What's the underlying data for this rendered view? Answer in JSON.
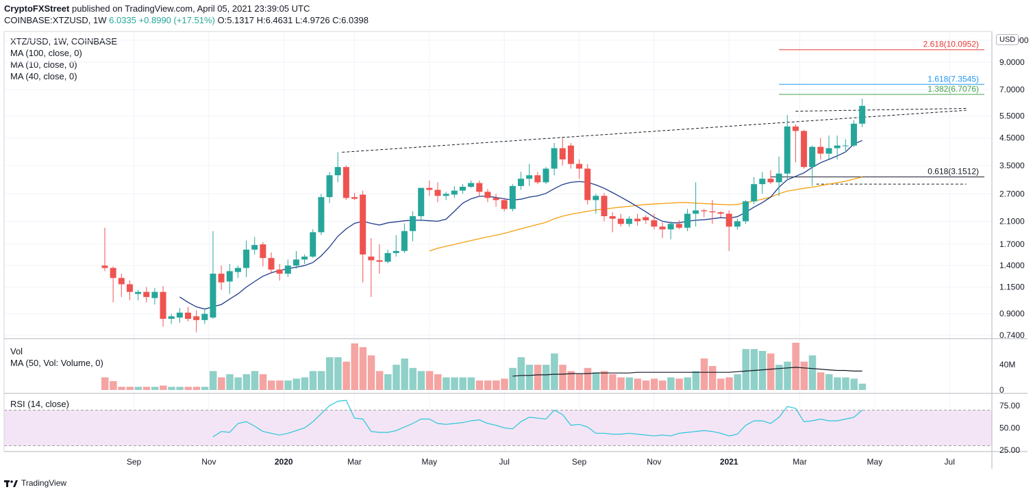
{
  "header": {
    "publisher": "CryptoFXStreet",
    "published_text": "published on TradingView.com, April 05, 2021 23:39:05 UTC",
    "symbol": "COINBASE:XTZUSD, 1W",
    "change": "+0.8990 (+17.51%)",
    "ohlc": "O:5.1317  H:6.4631  L:4.9726  C:6.0398",
    "last": "6.0335"
  },
  "legend": {
    "title": "XTZ/USD, 1W, COINBASE",
    "ma100": "MA (100, close, 0)",
    "ma10": "MA (10, close, 0)",
    "ma40": "MA (40, close, 0)",
    "vol": "Vol",
    "vol_ma": "MA (50, Vol: Volume, 0)",
    "rsi": "RSI (14, close)"
  },
  "currency": "USD",
  "footer": {
    "brand": "TradingView"
  },
  "colors": {
    "up": "#26a69a",
    "down": "#ef5350",
    "ma10": "#1e3a8a",
    "ma40": "#f59e0b",
    "rsi": "#26c6da",
    "fib_red": "#e53935",
    "fib_blue": "#2196f3",
    "fib_green": "#43a047"
  },
  "chart_data": {
    "type": "candlestick",
    "price_axis_ticks": [
      {
        "v": 11.0,
        "label": "11.0000"
      },
      {
        "v": 9.0,
        "label": "9.0000"
      },
      {
        "v": 7.0,
        "label": "7.0000"
      },
      {
        "v": 5.5,
        "label": "5.5000"
      },
      {
        "v": 4.5,
        "label": "4.5000"
      },
      {
        "v": 3.5,
        "label": "3.5000"
      },
      {
        "v": 2.7,
        "label": "2.7000"
      },
      {
        "v": 2.1,
        "label": "2.1000"
      },
      {
        "v": 1.7,
        "label": "1.7000"
      },
      {
        "v": 1.4,
        "label": "1.4000"
      },
      {
        "v": 1.15,
        "label": "1.1500"
      },
      {
        "v": 0.9,
        "label": "0.9000"
      },
      {
        "v": 0.74,
        "label": "0.7400"
      }
    ],
    "scale": "log",
    "time_labels": [
      {
        "i": 3.5,
        "label": "Sep",
        "bold": false
      },
      {
        "i": 12.5,
        "label": "Nov",
        "bold": false
      },
      {
        "i": 21.5,
        "label": "2020",
        "bold": true
      },
      {
        "i": 30,
        "label": "Mar",
        "bold": false
      },
      {
        "i": 39,
        "label": "May",
        "bold": false
      },
      {
        "i": 48,
        "label": "Jul",
        "bold": false
      },
      {
        "i": 57,
        "label": "Sep",
        "bold": false
      },
      {
        "i": 66,
        "label": "Nov",
        "bold": false
      },
      {
        "i": 75,
        "label": "2021",
        "bold": true
      },
      {
        "i": 83.5,
        "label": "Mar",
        "bold": false
      },
      {
        "i": 92.5,
        "label": "May",
        "bold": false
      },
      {
        "i": 101.5,
        "label": "Jul",
        "bold": false
      }
    ],
    "candles": [
      [
        1.4,
        1.98,
        1.33,
        1.37
      ],
      [
        1.37,
        1.39,
        1.0,
        1.25
      ],
      [
        1.25,
        1.3,
        1.05,
        1.18
      ],
      [
        1.18,
        1.22,
        1.02,
        1.1
      ],
      [
        1.08,
        1.12,
        1.02,
        1.1
      ],
      [
        1.1,
        1.15,
        1.0,
        1.05
      ],
      [
        1.04,
        1.14,
        0.98,
        1.1
      ],
      [
        1.1,
        1.16,
        0.8,
        0.86
      ],
      [
        0.86,
        0.9,
        0.82,
        0.88
      ],
      [
        0.87,
        0.95,
        0.83,
        0.91
      ],
      [
        0.91,
        0.96,
        0.84,
        0.86
      ],
      [
        0.88,
        0.93,
        0.76,
        0.85
      ],
      [
        0.85,
        0.95,
        0.82,
        0.9
      ],
      [
        0.87,
        1.92,
        0.86,
        1.3
      ],
      [
        1.3,
        1.4,
        1.12,
        1.2
      ],
      [
        1.21,
        1.42,
        1.08,
        1.33
      ],
      [
        1.32,
        1.4,
        1.25,
        1.37
      ],
      [
        1.37,
        1.76,
        1.26,
        1.62
      ],
      [
        1.62,
        1.82,
        1.55,
        1.69
      ],
      [
        1.7,
        1.74,
        1.39,
        1.5
      ],
      [
        1.5,
        1.58,
        1.3,
        1.35
      ],
      [
        1.35,
        1.42,
        1.22,
        1.3
      ],
      [
        1.3,
        1.48,
        1.26,
        1.4
      ],
      [
        1.4,
        1.6,
        1.36,
        1.48
      ],
      [
        1.48,
        1.55,
        1.42,
        1.52
      ],
      [
        1.52,
        1.95,
        1.5,
        1.9
      ],
      [
        1.9,
        2.7,
        1.85,
        2.62
      ],
      [
        2.62,
        3.3,
        2.48,
        3.2
      ],
      [
        3.2,
        3.95,
        3.0,
        3.45
      ],
      [
        3.45,
        3.5,
        2.55,
        2.6
      ],
      [
        2.62,
        2.72,
        2.55,
        2.58
      ],
      [
        2.68,
        2.78,
        1.2,
        1.55
      ],
      [
        1.52,
        1.8,
        1.05,
        1.47
      ],
      [
        1.47,
        1.7,
        1.3,
        1.45
      ],
      [
        1.45,
        1.62,
        1.43,
        1.57
      ],
      [
        1.57,
        1.85,
        1.52,
        1.6
      ],
      [
        1.6,
        2.06,
        1.57,
        1.92
      ],
      [
        1.92,
        2.3,
        1.75,
        2.2
      ],
      [
        2.2,
        2.85,
        2.1,
        2.85
      ],
      [
        2.85,
        3.05,
        2.65,
        2.8
      ],
      [
        2.8,
        3.0,
        2.5,
        2.65
      ],
      [
        2.65,
        2.75,
        2.55,
        2.7
      ],
      [
        2.68,
        2.9,
        2.6,
        2.78
      ],
      [
        2.78,
        2.95,
        2.7,
        2.88
      ],
      [
        2.88,
        3.05,
        2.85,
        2.98
      ],
      [
        2.98,
        3.05,
        2.65,
        2.75
      ],
      [
        2.75,
        2.82,
        2.5,
        2.6
      ],
      [
        2.6,
        2.7,
        2.4,
        2.55
      ],
      [
        2.55,
        2.6,
        2.3,
        2.35
      ],
      [
        2.35,
        2.95,
        2.3,
        2.9
      ],
      [
        2.9,
        3.3,
        2.8,
        3.1
      ],
      [
        3.1,
        3.55,
        2.9,
        3.2
      ],
      [
        3.2,
        3.3,
        2.95,
        3.0
      ],
      [
        3.0,
        3.45,
        2.95,
        3.4
      ],
      [
        3.4,
        4.3,
        3.2,
        4.1
      ],
      [
        4.1,
        4.5,
        3.5,
        3.7
      ],
      [
        4.2,
        4.3,
        3.4,
        3.55
      ],
      [
        3.55,
        3.7,
        3.1,
        3.4
      ],
      [
        3.4,
        3.55,
        2.45,
        2.55
      ],
      [
        2.55,
        2.7,
        2.25,
        2.65
      ],
      [
        2.65,
        2.72,
        2.1,
        2.2
      ],
      [
        2.2,
        2.28,
        1.9,
        2.15
      ],
      [
        2.15,
        2.25,
        2.0,
        2.05
      ],
      [
        2.05,
        2.2,
        2.0,
        2.15
      ],
      [
        2.15,
        2.25,
        2.02,
        2.1
      ],
      [
        2.18,
        2.22,
        2.05,
        2.12
      ],
      [
        2.12,
        2.25,
        1.95,
        2.0
      ],
      [
        2.0,
        2.08,
        1.8,
        1.95
      ],
      [
        1.95,
        2.1,
        1.78,
        2.05
      ],
      [
        2.05,
        2.12,
        1.95,
        1.98
      ],
      [
        1.98,
        2.35,
        1.92,
        2.25
      ],
      [
        2.25,
        3.0,
        2.0,
        2.32
      ],
      [
        2.32,
        2.35,
        2.18,
        2.3
      ],
      [
        2.3,
        2.55,
        2.05,
        2.28
      ],
      [
        2.28,
        2.3,
        2.18,
        2.25
      ],
      [
        2.25,
        2.32,
        1.6,
        2.0
      ],
      [
        2.0,
        2.15,
        1.95,
        2.1
      ],
      [
        2.1,
        2.55,
        2.05,
        2.52
      ],
      [
        2.52,
        3.15,
        2.45,
        2.95
      ],
      [
        2.95,
        3.3,
        2.7,
        3.1
      ],
      [
        3.1,
        3.35,
        2.95,
        3.0
      ],
      [
        3.0,
        3.8,
        2.65,
        3.25
      ],
      [
        3.25,
        5.55,
        3.05,
        5.0
      ],
      [
        5.0,
        5.1,
        3.6,
        4.8
      ],
      [
        4.8,
        4.85,
        3.4,
        3.45
      ],
      [
        3.45,
        4.2,
        2.9,
        4.15
      ],
      [
        4.15,
        4.5,
        3.7,
        3.9
      ],
      [
        3.9,
        4.6,
        3.7,
        4.1
      ],
      [
        4.1,
        4.6,
        3.7,
        4.2
      ],
      [
        4.2,
        4.45,
        3.95,
        4.2
      ],
      [
        4.2,
        5.3,
        4.15,
        5.13
      ],
      [
        5.13,
        6.46,
        4.97,
        6.04
      ]
    ],
    "volumes": [
      20,
      14,
      5,
      5,
      5,
      5,
      5,
      7,
      5,
      5,
      5,
      5,
      5,
      30,
      20,
      25,
      20,
      25,
      30,
      25,
      15,
      15,
      15,
      18,
      20,
      30,
      30,
      52,
      52,
      45,
      74,
      68,
      55,
      30,
      25,
      40,
      50,
      35,
      30,
      30,
      25,
      20,
      20,
      20,
      20,
      15,
      15,
      15,
      18,
      35,
      52,
      40,
      40,
      40,
      58,
      40,
      30,
      25,
      35,
      28,
      30,
      25,
      20,
      20,
      18,
      15,
      18,
      15,
      20,
      18,
      20,
      30,
      50,
      38,
      18,
      20,
      25,
      65,
      65,
      62,
      58,
      40,
      45,
      75,
      45,
      55,
      28,
      25,
      20,
      20,
      18,
      10
    ],
    "ma10": [
      null,
      null,
      null,
      null,
      null,
      null,
      null,
      null,
      null,
      1.05,
      1.0,
      0.96,
      0.94,
      0.96,
      0.98,
      1.03,
      1.08,
      1.15,
      1.21,
      1.27,
      1.31,
      1.34,
      1.36,
      1.38,
      1.4,
      1.44,
      1.53,
      1.66,
      1.83,
      1.96,
      2.06,
      2.1,
      2.06,
      2.03,
      2.07,
      2.09,
      2.11,
      2.12,
      2.12,
      2.11,
      2.1,
      2.14,
      2.3,
      2.48,
      2.58,
      2.64,
      2.64,
      2.61,
      2.58,
      2.55,
      2.57,
      2.62,
      2.65,
      2.71,
      2.83,
      2.94,
      3.0,
      3.02,
      3.0,
      2.93,
      2.84,
      2.73,
      2.62,
      2.51,
      2.4,
      2.29,
      2.18,
      2.1,
      2.07,
      2.07,
      2.1,
      2.12,
      2.13,
      2.15,
      2.17,
      2.16,
      2.19,
      2.28,
      2.39,
      2.49,
      2.62,
      2.87,
      3.07,
      3.17,
      3.27,
      3.44,
      3.59,
      3.7,
      3.82,
      3.96,
      4.26,
      4.4
    ],
    "ma40": [
      null,
      null,
      null,
      null,
      null,
      null,
      null,
      null,
      null,
      null,
      null,
      null,
      null,
      null,
      null,
      null,
      null,
      null,
      null,
      null,
      null,
      null,
      null,
      null,
      null,
      null,
      null,
      null,
      null,
      null,
      null,
      null,
      null,
      null,
      null,
      null,
      null,
      null,
      null,
      1.6,
      1.64,
      1.67,
      1.7,
      1.73,
      1.76,
      1.79,
      1.82,
      1.85,
      1.88,
      1.92,
      1.96,
      2.0,
      2.04,
      2.08,
      2.15,
      2.2,
      2.24,
      2.27,
      2.3,
      2.33,
      2.35,
      2.37,
      2.39,
      2.41,
      2.43,
      2.45,
      2.46,
      2.47,
      2.48,
      2.49,
      2.49,
      2.48,
      2.47,
      2.46,
      2.45,
      2.44,
      2.45,
      2.49,
      2.53,
      2.57,
      2.62,
      2.7,
      2.77,
      2.8,
      2.84,
      2.87,
      2.91,
      2.95,
      2.99,
      3.03,
      3.09,
      3.15
    ],
    "vol_ma": [
      null,
      null,
      null,
      null,
      null,
      null,
      null,
      null,
      null,
      null,
      null,
      null,
      null,
      null,
      null,
      null,
      null,
      null,
      null,
      null,
      null,
      null,
      null,
      null,
      null,
      null,
      null,
      null,
      null,
      null,
      null,
      null,
      null,
      null,
      null,
      null,
      null,
      null,
      null,
      null,
      null,
      null,
      null,
      null,
      null,
      null,
      null,
      null,
      null,
      22,
      23,
      23,
      24,
      24,
      25,
      25,
      26,
      26,
      26,
      27,
      27,
      27,
      27,
      27,
      28,
      28,
      28,
      28,
      28,
      28,
      28,
      28,
      28,
      28,
      28,
      28,
      29,
      30,
      31,
      32,
      33,
      34,
      35,
      36,
      35,
      34,
      33,
      32,
      31,
      31,
      30,
      30
    ],
    "rsi": [
      null,
      null,
      null,
      null,
      null,
      null,
      null,
      null,
      null,
      null,
      null,
      null,
      null,
      40,
      46,
      45,
      55,
      57,
      52,
      46,
      44,
      42,
      44,
      47,
      50,
      57,
      66,
      75,
      80,
      81,
      61,
      60,
      46,
      45,
      45,
      47,
      51,
      55,
      60,
      60,
      55,
      54,
      55,
      56,
      58,
      59,
      55,
      53,
      50,
      49,
      57,
      62,
      61,
      60,
      70,
      65,
      53,
      54,
      51,
      44,
      44,
      43,
      43,
      44,
      43,
      42,
      41,
      42,
      41,
      44,
      45,
      46,
      47,
      46,
      44,
      41,
      43,
      53,
      58,
      58,
      55,
      62,
      74,
      72,
      57,
      58,
      60,
      58,
      58,
      60,
      62,
      70
    ],
    "vol_ticks": [
      {
        "v": 40,
        "label": "40M"
      },
      {
        "v": 0,
        "label": "0"
      }
    ],
    "rsi_ticks": [
      {
        "v": 75,
        "label": "75.00"
      },
      {
        "v": 50,
        "label": "50.00"
      },
      {
        "v": 25,
        "label": "25.00"
      }
    ],
    "rsi_band": [
      30,
      70
    ],
    "fib_levels": [
      {
        "label": "2.618(10.0952)",
        "v": 10.0952,
        "color": "#e53935"
      },
      {
        "label": "1.618(7.3545)",
        "v": 7.3545,
        "color": "#2196f3"
      },
      {
        "label": "1.382(6.7076)",
        "v": 6.7076,
        "color": "#43a047"
      },
      {
        "label": "0.618(3.1512)",
        "v": 3.1512,
        "color": "#131722"
      }
    ],
    "trendlines": [
      {
        "from": [
          28.5,
          3.95
        ],
        "to": [
          103.5,
          5.8
        ]
      },
      {
        "from": [
          83,
          5.75
        ],
        "to": [
          103.5,
          5.9
        ]
      },
      {
        "from": [
          85.5,
          2.95
        ],
        "to": [
          103.5,
          2.95
        ]
      }
    ]
  }
}
